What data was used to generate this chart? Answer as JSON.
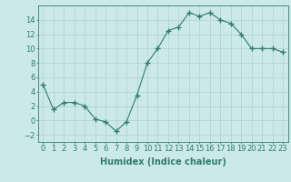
{
  "x": [
    0,
    1,
    2,
    3,
    4,
    5,
    6,
    7,
    8,
    9,
    10,
    11,
    12,
    13,
    14,
    15,
    16,
    17,
    18,
    19,
    20,
    21,
    22,
    23
  ],
  "y": [
    5,
    1.5,
    2.5,
    2.5,
    2,
    0.2,
    -0.2,
    -1.5,
    -0.2,
    3.5,
    8,
    10,
    12.5,
    13,
    15,
    14.5,
    15,
    14,
    13.5,
    12,
    10,
    10,
    10,
    9.5
  ],
  "line_color": "#2e7d6e",
  "marker": "+",
  "marker_size": 4,
  "bg_color": "#cce9e9",
  "grid_color": "#b0d0d0",
  "xlabel": "Humidex (Indice chaleur)",
  "xlim": [
    -0.5,
    23.5
  ],
  "ylim": [
    -3,
    16
  ],
  "yticks": [
    -2,
    0,
    2,
    4,
    6,
    8,
    10,
    12,
    14
  ],
  "xtick_labels": [
    "0",
    "1",
    "2",
    "3",
    "4",
    "5",
    "6",
    "7",
    "8",
    "9",
    "10",
    "11",
    "12",
    "13",
    "14",
    "15",
    "16",
    "17",
    "18",
    "19",
    "20",
    "21",
    "22",
    "23"
  ],
  "tick_color": "#2e7d6e",
  "label_color": "#2e7d6e",
  "spine_color": "#2e7d6e",
  "font_size": 6,
  "xlabel_fontsize": 7
}
